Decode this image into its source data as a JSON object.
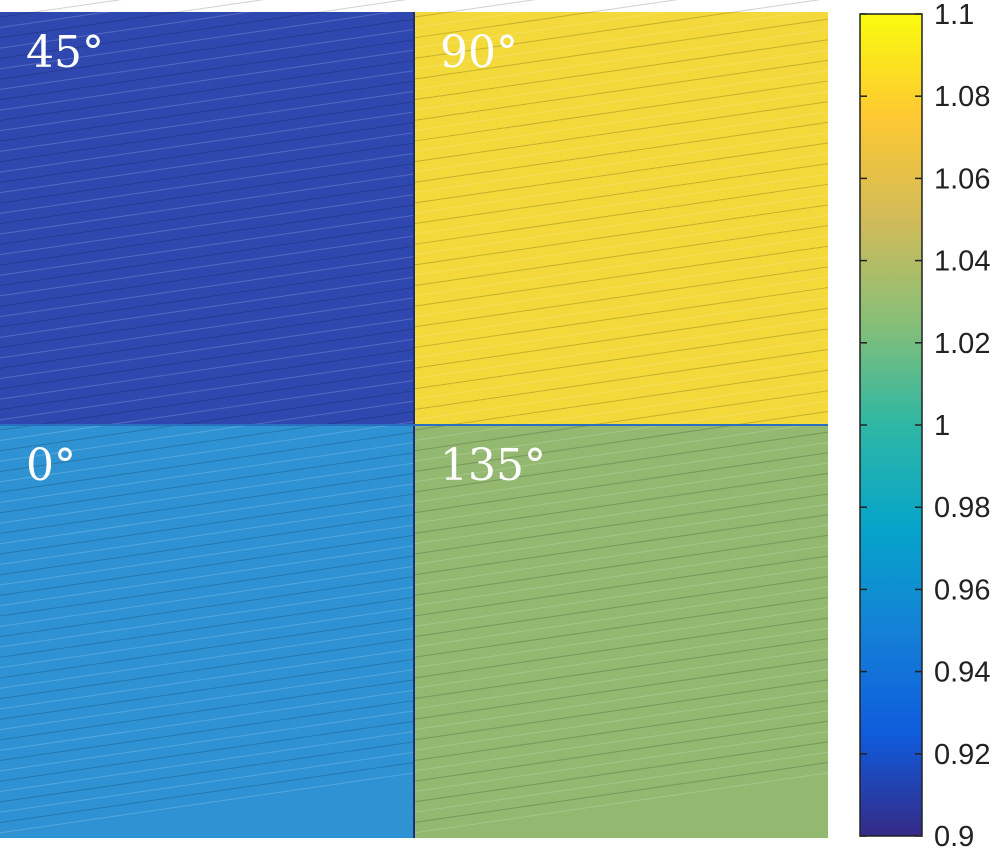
{
  "chart_data": {
    "type": "heatmap",
    "title": "",
    "xlabel": "",
    "ylabel": "",
    "panels": [
      {
        "label": "45°",
        "position": "top-left",
        "mean_value": 0.912,
        "base_color": "#2f48b0"
      },
      {
        "label": "90°",
        "position": "top-right",
        "mean_value": 1.095,
        "base_color": "#f3d93a"
      },
      {
        "label": "0°",
        "position": "bottom-left",
        "mean_value": 0.962,
        "base_color": "#2f93d3"
      },
      {
        "label": "135°",
        "position": "bottom-right",
        "mean_value": 1.03,
        "base_color": "#93b870"
      }
    ],
    "colorbar": {
      "range": [
        0.9,
        1.1
      ],
      "ticks": [
        "0.9",
        "0.92",
        "0.94",
        "0.96",
        "0.98",
        "1",
        "1.02",
        "1.04",
        "1.06",
        "1.08",
        "1.1"
      ],
      "colormap": "parula",
      "colormap_stops": [
        "#352a87",
        "#0f5cdd",
        "#1481d6",
        "#06a4ca",
        "#2eb7a4",
        "#87bf77",
        "#d1bb59",
        "#fec832",
        "#f9fb0e"
      ]
    }
  }
}
